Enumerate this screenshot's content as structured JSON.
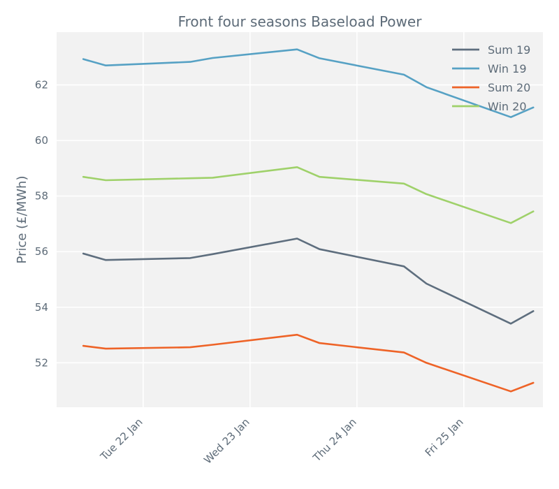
{
  "chart_data": {
    "type": "line",
    "title": "Front four seasons Baseload Power",
    "xlabel": "",
    "ylabel": "Price (£/MWh)",
    "ylim": [
      50.4,
      63.9
    ],
    "xlim": [
      -0.25,
      4.3
    ],
    "yticks": [
      52,
      54,
      56,
      58,
      60,
      62
    ],
    "xticks": [
      {
        "value": 0.56,
        "label": "Tue 22 Jan"
      },
      {
        "value": 1.56,
        "label": "Wed 23 Jan"
      },
      {
        "value": 2.56,
        "label": "Thu 24 Jan"
      },
      {
        "value": 3.56,
        "label": "Fri 25 Jan"
      }
    ],
    "grid": true,
    "legend_position": "top-right",
    "x": [
      0,
      0.21,
      1.0,
      1.21,
      2.0,
      2.21,
      3.0,
      3.21,
      4.0,
      4.21
    ],
    "series": [
      {
        "name": "Sum 19",
        "color": "#5e6e7e",
        "values": [
          55.93,
          55.7,
          55.77,
          55.91,
          56.47,
          56.09,
          55.47,
          54.85,
          53.41,
          53.86
        ]
      },
      {
        "name": "Win 19",
        "color": "#56a1c4",
        "values": [
          62.93,
          62.7,
          62.83,
          62.97,
          63.28,
          62.96,
          62.37,
          61.92,
          60.84,
          61.19
        ]
      },
      {
        "name": "Sum 20",
        "color": "#ee6327",
        "values": [
          52.61,
          52.51,
          52.56,
          52.65,
          53.01,
          52.71,
          52.37,
          52.0,
          50.97,
          51.28
        ]
      },
      {
        "name": "Win 20",
        "color": "#9fd16a",
        "values": [
          58.69,
          58.57,
          58.64,
          58.66,
          59.04,
          58.69,
          58.45,
          58.07,
          57.03,
          57.45
        ]
      }
    ]
  }
}
